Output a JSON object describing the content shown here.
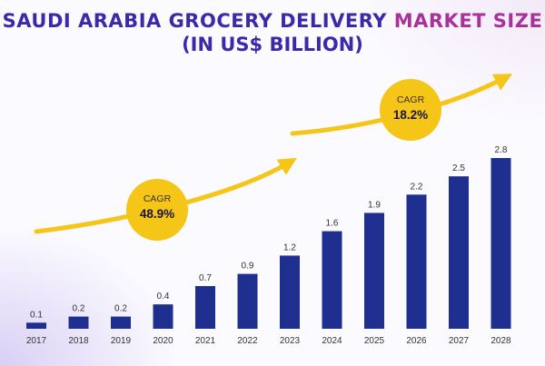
{
  "chart_data": {
    "type": "bar",
    "title_part1": "SAUDI ARABIA GROCERY DELIVERY ",
    "title_part2": "MARKET SIZE",
    "subtitle": "(IN US$ BILLION)",
    "categories": [
      "2017",
      "2018",
      "2019",
      "2020",
      "2021",
      "2022",
      "2023",
      "2024",
      "2025",
      "2026",
      "2027",
      "2028"
    ],
    "values": [
      0.1,
      0.2,
      0.2,
      0.4,
      0.7,
      0.9,
      1.2,
      1.6,
      1.9,
      2.2,
      2.5,
      2.8
    ],
    "value_labels": [
      "0.1",
      "0.2",
      "0.2",
      "0.4",
      "0.7",
      "0.9",
      "1.2",
      "1.6",
      "1.9",
      "2.2",
      "2.5",
      "2.8"
    ],
    "ylim": [
      0,
      2.8
    ],
    "grid": false,
    "bar_color": "#1f2f8f",
    "annotations": [
      {
        "label": "CAGR",
        "value": "48.9%"
      },
      {
        "label": "CAGR",
        "value": "18.2%"
      }
    ],
    "arrow_color": "#f5c518"
  }
}
